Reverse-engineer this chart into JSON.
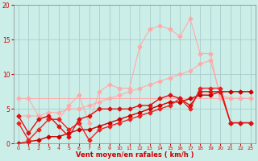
{
  "background_color": "#cceee8",
  "grid_color": "#aacccc",
  "xlabel": "Vent moyen/en rafales ( km/h )",
  "xlabel_color": "#cc0000",
  "tick_color": "#cc0000",
  "xlim_min": -0.5,
  "xlim_max": 23.5,
  "ylim_min": 0,
  "ylim_max": 20,
  "yticks": [
    0,
    5,
    10,
    15,
    20
  ],
  "xticks": [
    0,
    1,
    2,
    3,
    4,
    5,
    6,
    7,
    8,
    9,
    10,
    11,
    12,
    13,
    14,
    15,
    16,
    17,
    18,
    19,
    20,
    21,
    22,
    23
  ],
  "line1_x": [
    0,
    1,
    2,
    3,
    4,
    5,
    6,
    7,
    8,
    9,
    10,
    11,
    12,
    13,
    14,
    15,
    16,
    17,
    18,
    19,
    20,
    21,
    22,
    23
  ],
  "line1_y": [
    6.5,
    6.5,
    6.5,
    6.5,
    6.5,
    6.5,
    6.5,
    6.5,
    6.5,
    6.5,
    6.5,
    6.5,
    6.5,
    6.5,
    6.5,
    6.5,
    6.5,
    6.5,
    6.5,
    6.5,
    6.5,
    6.5,
    6.5,
    6.5
  ],
  "line1_color": "#ffaaaa",
  "line1_marker": "+",
  "line2_x": [
    0,
    1,
    2,
    3,
    4,
    5,
    6,
    7,
    8,
    9,
    10,
    11,
    12,
    13,
    14,
    15,
    16,
    17,
    18,
    19,
    20,
    21,
    22,
    23
  ],
  "line2_y": [
    0.0,
    0.3,
    0.5,
    1.0,
    1.0,
    1.5,
    2.0,
    2.0,
    2.5,
    3.0,
    3.5,
    4.0,
    4.5,
    5.0,
    5.5,
    6.0,
    6.0,
    6.5,
    7.0,
    7.0,
    7.5,
    7.5,
    7.5,
    7.5
  ],
  "line2_color": "#cc0000",
  "line3_x": [
    0,
    1,
    2,
    3,
    4,
    5,
    6,
    7,
    8,
    9,
    10,
    11,
    12,
    13,
    14,
    15,
    16,
    17,
    18,
    19,
    20,
    21,
    22,
    23
  ],
  "line3_y": [
    3.0,
    0.5,
    2.0,
    3.5,
    3.5,
    2.0,
    3.0,
    0.5,
    2.0,
    2.5,
    3.0,
    3.5,
    4.0,
    4.5,
    5.0,
    5.5,
    6.5,
    5.0,
    8.0,
    8.0,
    8.0,
    3.0,
    3.0,
    3.0
  ],
  "line3_color": "#ee2222",
  "line4_x": [
    0,
    1,
    2,
    3,
    4,
    5,
    6,
    7,
    8,
    9,
    10,
    11,
    12,
    13,
    14,
    15,
    16,
    17,
    18,
    19,
    20,
    21,
    22,
    23
  ],
  "line4_y": [
    4.0,
    1.5,
    3.5,
    4.0,
    2.5,
    1.0,
    3.5,
    4.0,
    5.0,
    5.0,
    5.0,
    5.0,
    5.5,
    5.5,
    6.5,
    7.0,
    6.5,
    5.5,
    7.5,
    7.5,
    7.5,
    3.0,
    3.0,
    3.0
  ],
  "line4_color": "#dd1111",
  "line5_x": [
    0,
    1,
    2,
    3,
    4,
    5,
    6,
    7,
    8,
    9,
    10,
    11,
    12,
    13,
    14,
    15,
    16,
    17,
    18,
    19,
    20,
    21,
    22,
    23
  ],
  "line5_y": [
    4.0,
    4.0,
    4.0,
    4.5,
    4.5,
    5.0,
    5.0,
    5.5,
    6.0,
    6.5,
    7.0,
    7.5,
    8.0,
    8.5,
    9.0,
    9.5,
    10.0,
    10.5,
    11.5,
    12.0,
    7.0,
    6.5,
    6.5,
    6.5
  ],
  "line5_color": "#ffaaaa",
  "line6_x": [
    0,
    1,
    2,
    3,
    4,
    5,
    6,
    7,
    8,
    9,
    10,
    11,
    12,
    13,
    14,
    15,
    16,
    17,
    18,
    19,
    20,
    21,
    22,
    23
  ],
  "line6_y": [
    6.5,
    6.5,
    4.0,
    3.5,
    3.5,
    5.5,
    7.0,
    3.0,
    7.5,
    8.5,
    8.0,
    8.0,
    14.0,
    16.5,
    17.0,
    16.5,
    15.5,
    18.0,
    13.0,
    13.0,
    6.5,
    6.5,
    6.5,
    6.5
  ],
  "line6_color": "#ffaaaa"
}
